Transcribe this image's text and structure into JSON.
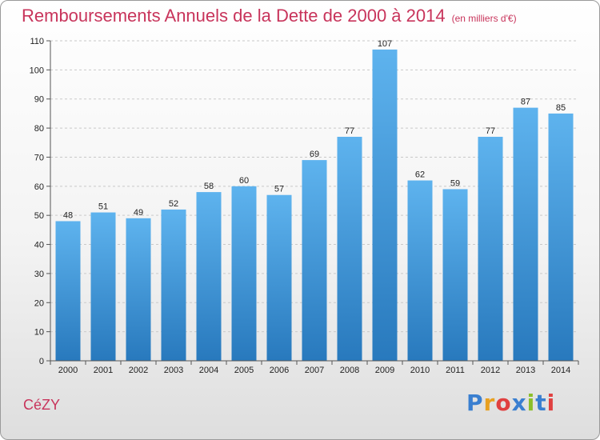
{
  "header": {
    "title": "Remboursements Annuels de la Dette de 2000 à 2014",
    "unit": "(en milliers d'€)"
  },
  "footer": {
    "city": "CéZY",
    "brand": "Proxiti"
  },
  "colors": {
    "title": "#c8345b",
    "bar_top": "#5aaeea",
    "bar_bottom": "#2a7fc4"
  },
  "chart_data": {
    "type": "bar",
    "categories": [
      "2000",
      "2001",
      "2002",
      "2003",
      "2004",
      "2005",
      "2006",
      "2007",
      "2008",
      "2009",
      "2010",
      "2011",
      "2012",
      "2013",
      "2014"
    ],
    "values": [
      48,
      51,
      49,
      52,
      58,
      60,
      57,
      69,
      77,
      107,
      62,
      59,
      77,
      87,
      85
    ],
    "ylim": [
      0,
      110
    ],
    "yticks": [
      0,
      10,
      20,
      30,
      40,
      50,
      60,
      70,
      80,
      90,
      100,
      110
    ],
    "grid": true
  }
}
